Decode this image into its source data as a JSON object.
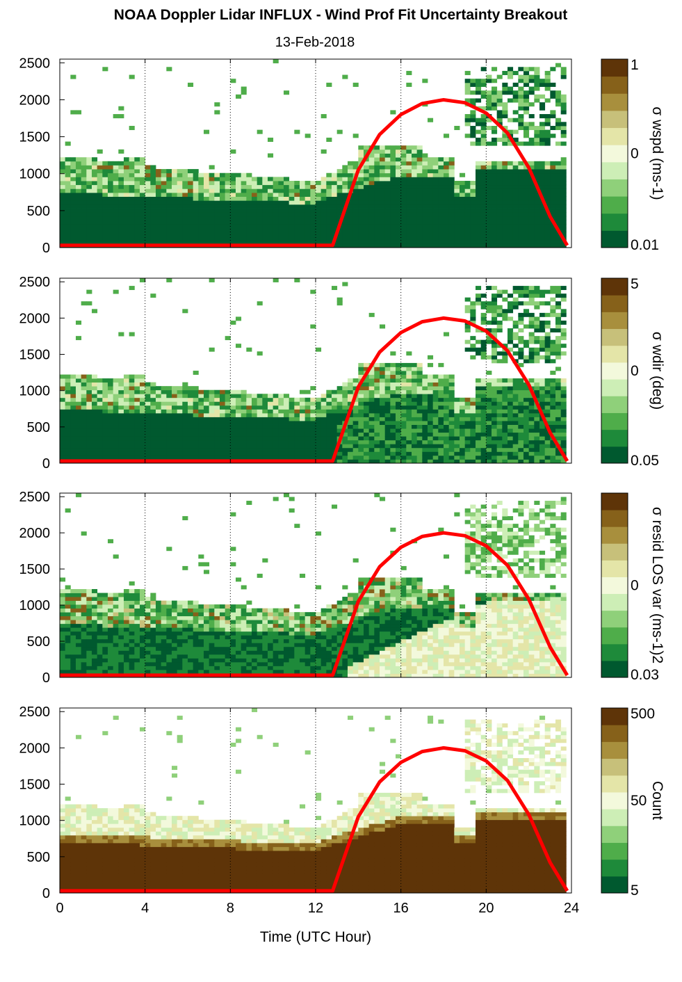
{
  "header": {
    "title": "NOAA Doppler Lidar INFLUX - Wind Prof Fit Uncertainty Breakout",
    "date": "13-Feb-2018"
  },
  "colors": {
    "colormap": [
      "#00592f",
      "#1e8a3a",
      "#4fad4a",
      "#8fd07a",
      "#cdeeb6",
      "#f3f9dc",
      "#e4e5a8",
      "#c7c07a",
      "#a88f3d",
      "#86611a",
      "#5e3408"
    ],
    "overlay": "#ff0000",
    "grid": "#000000"
  },
  "chart_data": [
    {
      "type": "heatmap",
      "panel": "wspd",
      "xlabel": "",
      "ylabel": "",
      "xlim": [
        0,
        24
      ],
      "ylim": [
        0,
        2550
      ],
      "xticks": [
        "0",
        "4",
        "8",
        "12",
        "16",
        "20",
        "24"
      ],
      "yticks": [
        "0",
        "500",
        "1000",
        "1500",
        "2000",
        "2500"
      ],
      "colorbar": {
        "label": "σ wspd (ms-1)",
        "ticks": [
          "1",
          "0",
          "0.01"
        ]
      },
      "grid": "vertical dotted at 4, 8, 12, 16, 20",
      "overlay_curve": {
        "name": "",
        "x": [
          0,
          12.8,
          14,
          15,
          16,
          17,
          18,
          19,
          20,
          21,
          22,
          23,
          23.8
        ],
        "y": [
          30,
          30,
          1050,
          1530,
          1800,
          1950,
          2000,
          1960,
          1820,
          1550,
          1080,
          420,
          30
        ]
      }
    },
    {
      "type": "heatmap",
      "panel": "wdir",
      "xlabel": "",
      "ylabel": "",
      "xlim": [
        0,
        24
      ],
      "ylim": [
        0,
        2550
      ],
      "xticks": [
        "0",
        "4",
        "8",
        "12",
        "16",
        "20",
        "24"
      ],
      "yticks": [
        "0",
        "500",
        "1000",
        "1500",
        "2000",
        "2500"
      ],
      "colorbar": {
        "label": "σ wdir (deg)",
        "ticks": [
          "5",
          "0",
          "0.05"
        ]
      },
      "grid": "vertical dotted at 4, 8, 12, 16, 20",
      "overlay_curve": {
        "name": "",
        "x": [
          0,
          12.8,
          14,
          15,
          16,
          17,
          18,
          19,
          20,
          21,
          22,
          23,
          23.8
        ],
        "y": [
          30,
          30,
          1050,
          1530,
          1800,
          1950,
          2000,
          1960,
          1820,
          1550,
          1080,
          420,
          30
        ]
      }
    },
    {
      "type": "heatmap",
      "panel": "resid",
      "xlabel": "",
      "ylabel": "",
      "xlim": [
        0,
        24
      ],
      "ylim": [
        0,
        2550
      ],
      "xticks": [
        "0",
        "4",
        "8",
        "12",
        "16",
        "20",
        "24"
      ],
      "yticks": [
        "0",
        "500",
        "1000",
        "1500",
        "2000",
        "2500"
      ],
      "colorbar": {
        "label": "σ resid LOS var (ms-1)2",
        "ticks": [
          "0",
          "0.03"
        ]
      },
      "grid": "vertical dotted at 4, 8, 12, 16, 20",
      "overlay_curve": {
        "name": "",
        "x": [
          0,
          12.8,
          14,
          15,
          16,
          17,
          18,
          19,
          20,
          21,
          22,
          23,
          23.8
        ],
        "y": [
          30,
          30,
          1050,
          1530,
          1800,
          1950,
          2000,
          1960,
          1820,
          1550,
          1080,
          420,
          30
        ]
      }
    },
    {
      "type": "heatmap",
      "panel": "count",
      "xlabel": "Time (UTC Hour)",
      "ylabel": "",
      "xlim": [
        0,
        24
      ],
      "ylim": [
        0,
        2550
      ],
      "xticks": [
        "0",
        "4",
        "8",
        "12",
        "16",
        "20",
        "24"
      ],
      "yticks": [
        "0",
        "500",
        "1000",
        "1500",
        "2000",
        "2500"
      ],
      "colorbar": {
        "label": "Count",
        "ticks": [
          "500",
          "50",
          "5"
        ]
      },
      "grid": "vertical dotted at 4, 8, 12, 16, 20",
      "overlay_curve": {
        "name": "",
        "x": [
          0,
          12.8,
          14,
          15,
          16,
          17,
          18,
          19,
          20,
          21,
          22,
          23,
          23.8
        ],
        "y": [
          30,
          30,
          1050,
          1530,
          1800,
          1950,
          2000,
          1960,
          1820,
          1550,
          1080,
          420,
          30
        ]
      }
    }
  ]
}
